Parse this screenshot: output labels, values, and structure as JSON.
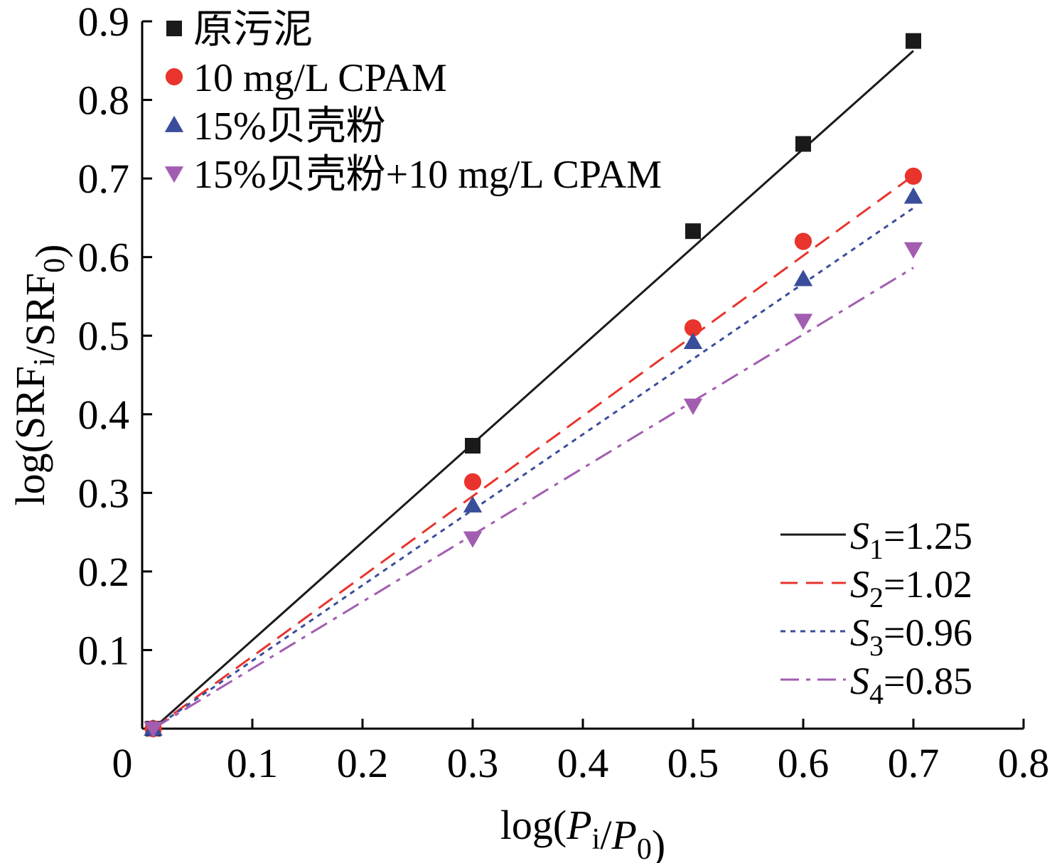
{
  "chart_data": {
    "type": "scatter",
    "xlabel": "log(Pi/P0)",
    "ylabel": "log(SRFi/SRF0)",
    "xlim": [
      0,
      0.8
    ],
    "ylim": [
      0,
      0.9
    ],
    "x_ticks": [
      "0",
      "0.1",
      "0.2",
      "0.3",
      "0.4",
      "0.5",
      "0.6",
      "0.7",
      "0.8"
    ],
    "y_ticks": [
      "0.1",
      "0.2",
      "0.3",
      "0.4",
      "0.5",
      "0.6",
      "0.7",
      "0.8",
      "0.9"
    ],
    "x": [
      0,
      0.3,
      0.5,
      0.6,
      0.7
    ],
    "series": [
      {
        "name": "原污泥",
        "marker": "square",
        "color": "#1a1a1a",
        "values": [
          0,
          0.36,
          0.633,
          0.744,
          0.875
        ],
        "fit": {
          "label": "S1=1.25",
          "slope": 1.25,
          "style": "solid"
        }
      },
      {
        "name": "10 mg/L CPAM",
        "marker": "circle",
        "color": "#e8342c",
        "values": [
          0,
          0.314,
          0.51,
          0.62,
          0.703
        ],
        "fit": {
          "label": "S2=1.02",
          "slope": 1.02,
          "style": "dashed"
        }
      },
      {
        "name": "15%贝壳粉",
        "marker": "triangle-up",
        "color": "#3a4d9a",
        "values": [
          0,
          0.284,
          0.492,
          0.572,
          0.677
        ],
        "fit": {
          "label": "S3=0.96",
          "slope": 0.96,
          "style": "dotted"
        }
      },
      {
        "name": "15%贝壳粉+10 mg/L CPAM",
        "marker": "triangle-down",
        "color": "#a25db0",
        "values": [
          0,
          0.242,
          0.411,
          0.519,
          0.61
        ],
        "fit": {
          "label": "S4=0.85",
          "slope": 0.85,
          "style": "dashdot"
        }
      }
    ],
    "legend": {
      "placement": "top-left"
    },
    "fit_legend": {
      "placement": "bottom-right"
    },
    "grid": false
  }
}
